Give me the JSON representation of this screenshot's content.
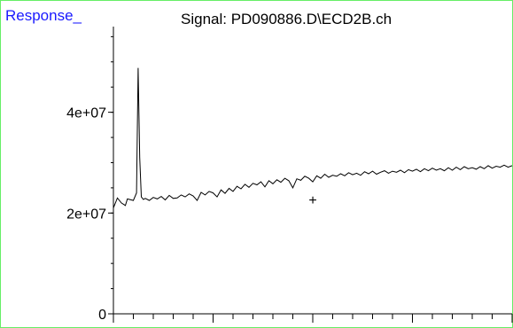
{
  "header": {
    "response_label": "Response_",
    "signal_title": "Signal: PD090886.D\\ECD2B.ch"
  },
  "chart_data": {
    "type": "line",
    "title": "Signal: PD090886.D\\ECD2B.ch",
    "ylabel": "Response_",
    "xlabel": "",
    "ylim": [
      0,
      57000000
    ],
    "y_ticks": [
      {
        "value": 0,
        "label": "0"
      },
      {
        "value": 20000000,
        "label": "2e+07"
      },
      {
        "value": 40000000,
        "label": "4e+07"
      }
    ],
    "series": [
      {
        "x": [
          0.0,
          0.01,
          0.02,
          0.03,
          0.035,
          0.05,
          0.058,
          0.062,
          0.066,
          0.07,
          0.075,
          0.08,
          0.09,
          0.1,
          0.11,
          0.12,
          0.13,
          0.14,
          0.15,
          0.16,
          0.17,
          0.18,
          0.19,
          0.2,
          0.21,
          0.22,
          0.23,
          0.24,
          0.25,
          0.26,
          0.27,
          0.28,
          0.29,
          0.3,
          0.31,
          0.32,
          0.33,
          0.34,
          0.35,
          0.36,
          0.37,
          0.38,
          0.39,
          0.4,
          0.41,
          0.42,
          0.43,
          0.44,
          0.45,
          0.46,
          0.47,
          0.48,
          0.49,
          0.5,
          0.51,
          0.52,
          0.53,
          0.54,
          0.55,
          0.56,
          0.57,
          0.58,
          0.59,
          0.6,
          0.61,
          0.62,
          0.63,
          0.64,
          0.65,
          0.66,
          0.67,
          0.68,
          0.69,
          0.7,
          0.71,
          0.72,
          0.73,
          0.74,
          0.75,
          0.76,
          0.77,
          0.78,
          0.79,
          0.8,
          0.81,
          0.82,
          0.83,
          0.84,
          0.85,
          0.86,
          0.87,
          0.88,
          0.89,
          0.9,
          0.91,
          0.92,
          0.93,
          0.94,
          0.95,
          0.96,
          0.97,
          0.98,
          0.99,
          1.0
        ],
        "y": [
          21000000,
          23000000,
          22000000,
          21500000,
          22800000,
          22500000,
          24000000,
          48800000,
          31000000,
          23200000,
          22700000,
          22900000,
          22500000,
          23100000,
          22800000,
          23300000,
          22600000,
          23500000,
          22900000,
          23000000,
          23600000,
          23200000,
          23800000,
          23400000,
          22500000,
          24100000,
          23600000,
          24300000,
          24000000,
          23200000,
          24600000,
          23900000,
          24900000,
          24300000,
          25300000,
          24800000,
          25700000,
          25100000,
          25900000,
          25600000,
          26200000,
          25200000,
          26400000,
          25800000,
          26600000,
          26100000,
          26900000,
          26400000,
          25000000,
          26800000,
          26500000,
          27300000,
          26900000,
          26200000,
          27400000,
          26900000,
          27700000,
          27100000,
          27500000,
          27300000,
          27800000,
          27400000,
          28000000,
          27600000,
          27900000,
          27500000,
          28200000,
          27800000,
          28300000,
          27700000,
          28100000,
          28400000,
          27900000,
          28300000,
          28100000,
          28500000,
          28000000,
          28600000,
          28300000,
          28700000,
          28200000,
          28800000,
          28400000,
          28900000,
          28500000,
          28800000,
          28400000,
          29000000,
          28500000,
          29100000,
          28600000,
          29200000,
          28800000,
          29000000,
          28700000,
          29200000,
          28800000,
          29400000,
          28900000,
          29300000,
          29100000,
          29500000,
          29100000,
          29400000
        ]
      }
    ],
    "marker": {
      "symbol": "+",
      "x": 0.5,
      "y": 22700000
    },
    "grid": false,
    "colors": {
      "line": "#000000",
      "frame": "#66ee66",
      "response_label": "#1a1aff"
    }
  }
}
